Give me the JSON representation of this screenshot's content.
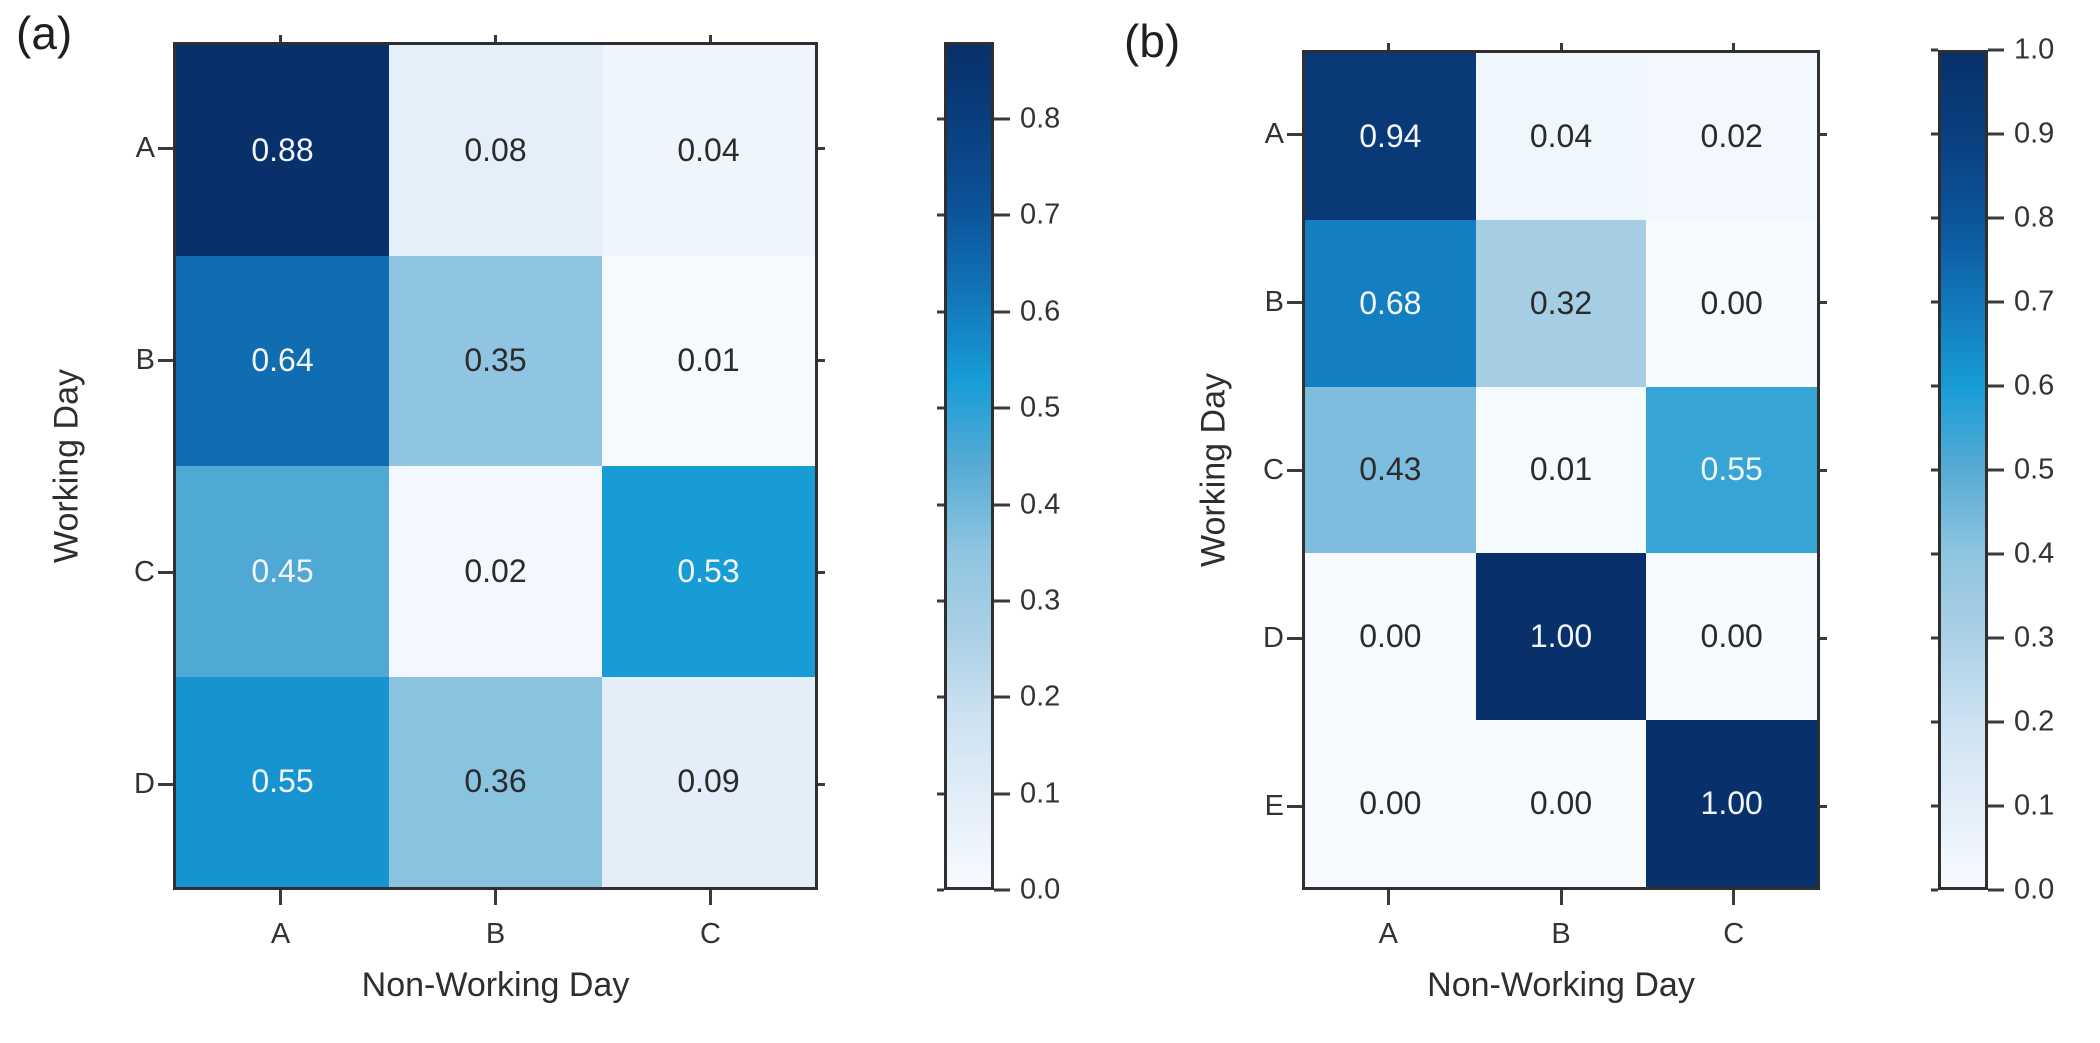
{
  "figure": {
    "background": "#ffffff",
    "axis_color": "#2f2f2f",
    "tick_color": "#3a3a3a",
    "text_color": "#333333",
    "cell_text_dark": "#2b2b2b",
    "cell_text_light": "#f2f6fa",
    "light_text_threshold": 0.45,
    "colormap_stops": [
      [
        0.0,
        "#f7fbff"
      ],
      [
        0.1,
        "#e3eef8"
      ],
      [
        0.2,
        "#cde2f2"
      ],
      [
        0.3,
        "#abd0e6"
      ],
      [
        0.4,
        "#8ec5e0"
      ],
      [
        0.5,
        "#57abd5"
      ],
      [
        0.6,
        "#189dd6"
      ],
      [
        0.7,
        "#1277ba"
      ],
      [
        0.8,
        "#0c549a"
      ],
      [
        0.9,
        "#09407f"
      ],
      [
        1.0,
        "#08306b"
      ]
    ]
  },
  "chart_data": [
    {
      "type": "heatmap",
      "panel_tag": "(a)",
      "xlabel": "Non-Working Day",
      "ylabel": "Working Day",
      "x_categories": [
        "A",
        "B",
        "C"
      ],
      "y_categories": [
        "A",
        "B",
        "C",
        "D"
      ],
      "values": [
        [
          0.88,
          0.08,
          0.04
        ],
        [
          0.64,
          0.35,
          0.01
        ],
        [
          0.45,
          0.02,
          0.53
        ],
        [
          0.55,
          0.36,
          0.09
        ]
      ],
      "vmin": 0.0,
      "vmax": 0.88,
      "colormap": "Blues",
      "grid": false,
      "legend_position": "right-colorbar",
      "colorbar_ticks": [
        0.8,
        0.7,
        0.6,
        0.5,
        0.4,
        0.3,
        0.2,
        0.1,
        0.0
      ]
    },
    {
      "type": "heatmap",
      "panel_tag": "(b)",
      "xlabel": "Non-Working Day",
      "ylabel": "Working Day",
      "x_categories": [
        "A",
        "B",
        "C"
      ],
      "y_categories": [
        "A",
        "B",
        "C",
        "D",
        "E"
      ],
      "values": [
        [
          0.94,
          0.04,
          0.02
        ],
        [
          0.68,
          0.32,
          0.0
        ],
        [
          0.43,
          0.01,
          0.55
        ],
        [
          0.0,
          1.0,
          0.0
        ],
        [
          0.0,
          0.0,
          1.0
        ]
      ],
      "vmin": 0.0,
      "vmax": 1.0,
      "colormap": "Blues",
      "grid": false,
      "legend_position": "right-colorbar",
      "colorbar_ticks": [
        1.0,
        0.9,
        0.8,
        0.7,
        0.6,
        0.5,
        0.4,
        0.3,
        0.2,
        0.1,
        0.0
      ]
    }
  ]
}
